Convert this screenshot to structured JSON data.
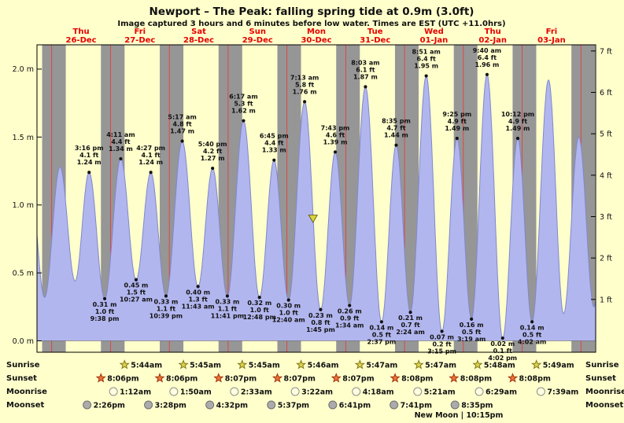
{
  "header": {
    "title": "Newport – The Peak: falling  spring tide at 0.9m (3.0ft)",
    "subtitle": "Image captured 3 hours and 6 minutes before low water. Times are EST (UTC +11.0hrs)"
  },
  "days": [
    {
      "name": "Thu",
      "date": "26-Dec"
    },
    {
      "name": "Fri",
      "date": "27-Dec"
    },
    {
      "name": "Sat",
      "date": "28-Dec"
    },
    {
      "name": "Sun",
      "date": "29-Dec"
    },
    {
      "name": "Mon",
      "date": "30-Dec"
    },
    {
      "name": "Tue",
      "date": "31-Dec"
    },
    {
      "name": "Wed",
      "date": "01-Jan"
    },
    {
      "name": "Thu",
      "date": "02-Jan"
    },
    {
      "name": "Fri",
      "date": "03-Jan"
    }
  ],
  "axes": {
    "m_labels": [
      "2.0 m",
      "1.5 m",
      "1.0 m",
      "0.5 m",
      "0.0 m"
    ],
    "ft_labels": [
      "7 ft",
      "6 ft",
      "5 ft",
      "4 ft",
      "3 ft",
      "2 ft",
      "1 ft"
    ]
  },
  "chart_data": {
    "type": "area",
    "title": "Newport – The Peak tide heights",
    "x_range": "Thu 26-Dec through Fri 03-Jan",
    "y_range_m": [
      0.0,
      2.2
    ],
    "y_range_ft": [
      0,
      7
    ],
    "sunrise_hour": 5.75,
    "sunset_hour": 20.1,
    "colors": {
      "day_band": "#ffffcc",
      "night_band": "#969696",
      "tide_fill": "#b2b6ee",
      "tide_stroke": "#7f88cf",
      "midnight_line": "#ee3333",
      "marker_fill": "#d8d23c"
    },
    "tide_events": [
      {
        "day": 0,
        "type": "high",
        "time": "3:16 pm",
        "ft": "4.1 ft",
        "m": "1.24 m"
      },
      {
        "day": 0,
        "type": "low",
        "time": "9:38 pm",
        "ft": "1.0 ft",
        "m": "0.31 m"
      },
      {
        "day": 1,
        "type": "high",
        "time": "4:11 am",
        "ft": "4.4 ft",
        "m": "1.34 m"
      },
      {
        "day": 1,
        "type": "low",
        "time": "10:27 am",
        "ft": "1.5 ft",
        "m": "0.45 m"
      },
      {
        "day": 1,
        "type": "high",
        "time": "4:27 pm",
        "ft": "4.1 ft",
        "m": "1.24 m"
      },
      {
        "day": 1,
        "type": "low",
        "time": "10:39 pm",
        "ft": "1.1 ft",
        "m": "0.33 m"
      },
      {
        "day": 2,
        "type": "high",
        "time": "5:17 am",
        "ft": "4.8 ft",
        "m": "1.47 m"
      },
      {
        "day": 2,
        "type": "low",
        "time": "11:43 am",
        "ft": "1.3 ft",
        "m": "0.40 m"
      },
      {
        "day": 2,
        "type": "high",
        "time": "5:40 pm",
        "ft": "4.2 ft",
        "m": "1.27 m"
      },
      {
        "day": 2,
        "type": "low",
        "time": "11:41 pm",
        "ft": "1.1 ft",
        "m": "0.33 m"
      },
      {
        "day": 3,
        "type": "high",
        "time": "6:17 am",
        "ft": "5.3 ft",
        "m": "1.62 m"
      },
      {
        "day": 3,
        "type": "low",
        "time": "12:48 pm",
        "ft": "1.0 ft",
        "m": "0.32 m"
      },
      {
        "day": 3,
        "type": "high",
        "time": "6:45 pm",
        "ft": "4.4 ft",
        "m": "1.33 m"
      },
      {
        "day": 4,
        "type": "low",
        "time": "12:40 am",
        "ft": "1.0 ft",
        "m": "0.30 m"
      },
      {
        "day": 4,
        "type": "high",
        "time": "7:13 am",
        "ft": "5.8 ft",
        "m": "1.76 m"
      },
      {
        "day": 4,
        "type": "low",
        "time": "1:45 pm",
        "ft": "0.8 ft",
        "m": "0.23 m"
      },
      {
        "day": 4,
        "type": "high",
        "time": "7:43 pm",
        "ft": "4.6 ft",
        "m": "1.39 m"
      },
      {
        "day": 5,
        "type": "low",
        "time": "1:34 am",
        "ft": "0.9 ft",
        "m": "0.26 m"
      },
      {
        "day": 5,
        "type": "high",
        "time": "8:03 am",
        "ft": "6.1 ft",
        "m": "1.87 m"
      },
      {
        "day": 5,
        "type": "low",
        "time": "2:37 pm",
        "ft": "0.5 ft",
        "m": "0.14 m"
      },
      {
        "day": 5,
        "type": "high",
        "time": "8:35 pm",
        "ft": "4.7 ft",
        "m": "1.44 m"
      },
      {
        "day": 6,
        "type": "low",
        "time": "2:24 am",
        "ft": "0.7 ft",
        "m": "0.21 m"
      },
      {
        "day": 6,
        "type": "high",
        "time": "8:51 am",
        "ft": "6.4 ft",
        "m": "1.95 m"
      },
      {
        "day": 6,
        "type": "low",
        "time": "3:15 pm",
        "ft": "0.2 ft",
        "m": "0.07 m"
      },
      {
        "day": 6,
        "type": "high",
        "time": "9:25 pm",
        "ft": "4.9 ft",
        "m": "1.49 m"
      },
      {
        "day": 7,
        "type": "low",
        "time": "3:19 am",
        "ft": "0.5 ft",
        "m": "0.16 m"
      },
      {
        "day": 7,
        "type": "high",
        "time": "9:40 am",
        "ft": "6.4 ft",
        "m": "1.96 m"
      },
      {
        "day": 7,
        "type": "low",
        "time": "4:02 pm",
        "ft": "0.1 ft",
        "m": "0.02 m"
      },
      {
        "day": 7,
        "type": "high",
        "time": "10:12 pm",
        "ft": "4.9 ft",
        "m": "1.49 m"
      },
      {
        "day": 8,
        "type": "low",
        "time": "4:02 am",
        "ft": "0.5 ft",
        "m": "0.14 m"
      }
    ],
    "current_marker": {
      "day": 4,
      "time": "10:39 am",
      "height_m": 0.9
    },
    "edge_extremes_est": [
      {
        "t": -8.9,
        "h": 1.2
      },
      {
        "t": -2.9,
        "h": 0.32
      },
      {
        "t": 3.4,
        "h": 1.28
      },
      {
        "t": 9.55,
        "h": 0.44
      },
      {
        "t": 202.75,
        "h": 1.92
      },
      {
        "t": 208.9,
        "h": 0.2
      },
      {
        "t": 215.1,
        "h": 1.5
      },
      {
        "t": 221.3,
        "h": 0.25
      },
      {
        "t": 227.5,
        "h": 1.9
      }
    ]
  },
  "astro": {
    "side_labels": [
      "Sunrise",
      "Sunset",
      "Moonrise",
      "Moonset"
    ],
    "sunrise": [
      {
        "day": 1,
        "time": "5:44am"
      },
      {
        "day": 2,
        "time": "5:45am"
      },
      {
        "day": 3,
        "time": "5:45am"
      },
      {
        "day": 4,
        "time": "5:46am"
      },
      {
        "day": 5,
        "time": "5:47am"
      },
      {
        "day": 6,
        "time": "5:47am"
      },
      {
        "day": 7,
        "time": "5:48am"
      },
      {
        "day": 8,
        "time": "5:49am"
      }
    ],
    "sunset": [
      {
        "day": 0,
        "time": "8:06pm"
      },
      {
        "day": 1,
        "time": "8:06pm"
      },
      {
        "day": 2,
        "time": "8:07pm"
      },
      {
        "day": 3,
        "time": "8:07pm"
      },
      {
        "day": 4,
        "time": "8:07pm"
      },
      {
        "day": 5,
        "time": "8:08pm"
      },
      {
        "day": 6,
        "time": "8:08pm"
      },
      {
        "day": 7,
        "time": "8:08pm"
      }
    ],
    "moonrise": [
      {
        "day": 1,
        "time": "1:12am"
      },
      {
        "day": 2,
        "time": "1:50am"
      },
      {
        "day": 3,
        "time": "2:33am"
      },
      {
        "day": 4,
        "time": "3:22am"
      },
      {
        "day": 5,
        "time": "4:18am"
      },
      {
        "day": 6,
        "time": "5:21am"
      },
      {
        "day": 7,
        "time": "6:29am"
      },
      {
        "day": 8,
        "time": "7:39am"
      }
    ],
    "moonset": [
      {
        "day": 0,
        "time": "2:26pm"
      },
      {
        "day": 1,
        "time": "3:28pm"
      },
      {
        "day": 2,
        "time": "4:32pm"
      },
      {
        "day": 3,
        "time": "5:37pm"
      },
      {
        "day": 4,
        "time": "6:41pm"
      },
      {
        "day": 5,
        "time": "7:41pm"
      },
      {
        "day": 6,
        "time": "8:35pm"
      }
    ],
    "new_moon": "New Moon | 10:15pm"
  }
}
